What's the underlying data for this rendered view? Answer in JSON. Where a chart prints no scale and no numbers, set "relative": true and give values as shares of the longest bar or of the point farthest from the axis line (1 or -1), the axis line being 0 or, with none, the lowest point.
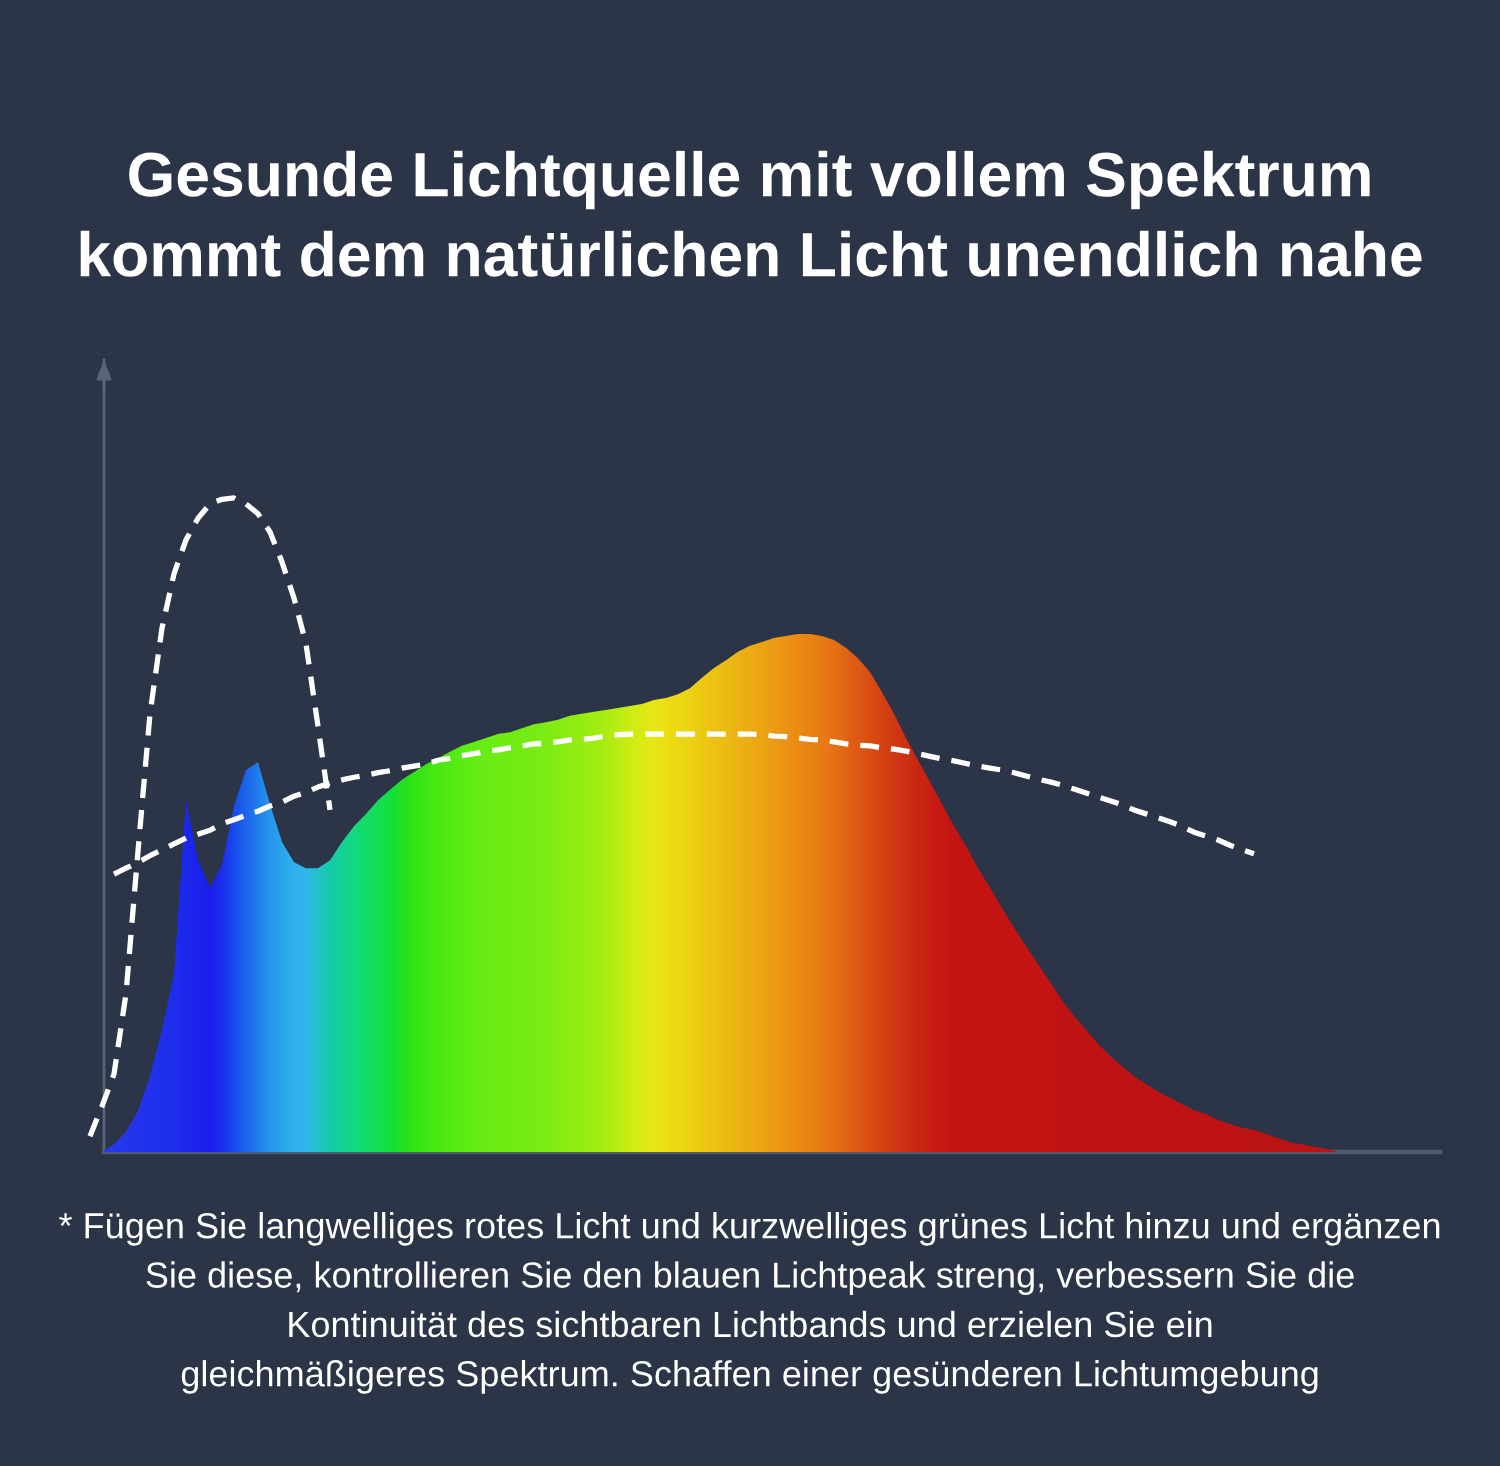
{
  "chart_data": {
    "type": "area",
    "relative": true,
    "title": "Gesunde Lichtquelle mit vollem Spektrum\nkommt dem natürlichen Licht unendlich nahe",
    "annotations": [
      "* Fügen Sie langwelliges rotes Licht und kurzwelliges grünes Licht hinzu und ergänzen\nSie diese, kontrollieren Sie den blauen Lichtpeak streng, verbessern Sie die\nKontinuität des sichtbaren Lichtbands und erzielen Sie ein\ngleichmäßigeres Spektrum. Schaffen einer gesünderen Lichtumgebung"
    ],
    "categories": [
      null,
      null,
      null,
      null,
      null,
      null,
      null,
      null,
      null,
      null,
      null,
      null,
      null,
      null,
      null,
      null,
      null,
      null,
      null,
      null,
      null,
      null,
      null,
      null,
      null,
      null,
      null,
      null,
      null,
      null,
      null,
      null,
      null,
      null,
      null,
      null,
      null,
      null,
      null,
      null,
      null,
      null,
      null,
      null,
      null,
      null,
      null,
      null,
      null,
      null,
      null,
      null,
      null,
      null,
      null,
      null,
      null,
      null,
      null,
      null,
      null,
      null,
      null,
      null,
      null,
      null,
      null,
      null,
      null,
      null,
      null,
      null,
      null,
      null,
      null,
      null,
      null,
      null,
      null,
      null,
      null,
      null,
      null,
      null,
      null,
      null,
      null,
      null,
      null,
      null,
      null,
      null,
      null,
      null,
      null,
      null,
      null,
      null,
      null,
      null,
      null,
      null,
      null,
      null,
      null,
      null,
      null,
      null,
      null,
      null,
      null,
      null,
      null
    ],
    "series": [
      {
        "values": [
          null,
          0,
          0.012,
          0.031,
          0.064,
          0.116,
          0.187,
          0.272,
          0.538,
          0.446,
          0.404,
          0.44,
          0.529,
          0.584,
          0.596,
          0.532,
          0.474,
          0.443,
          0.434,
          0.434,
          0.446,
          0.474,
          0.498,
          0.517,
          0.538,
          0.554,
          0.569,
          0.581,
          0.593,
          0.602,
          0.612,
          0.621,
          0.627,
          0.633,
          0.639,
          0.642,
          0.648,
          0.654,
          0.657,
          0.661,
          0.667,
          0.67,
          0.673,
          0.676,
          0.679,
          0.682,
          0.685,
          0.691,
          0.694,
          0.7,
          0.709,
          0.725,
          0.74,
          0.752,
          0.765,
          0.774,
          0.78,
          0.786,
          0.789,
          0.792,
          0.792,
          0.789,
          0.783,
          0.771,
          0.755,
          0.734,
          0.703,
          0.67,
          0.633,
          0.599,
          0.566,
          0.532,
          0.498,
          0.468,
          0.434,
          0.404,
          0.373,
          0.343,
          0.315,
          0.287,
          0.26,
          0.232,
          0.208,
          0.187,
          0.165,
          0.147,
          0.131,
          0.116,
          0.104,
          0.092,
          0.083,
          0.073,
          0.064,
          0.058,
          0.049,
          0.043,
          0.037,
          0.034,
          0.028,
          0.021,
          0.015,
          0.012,
          0.008,
          0.005,
          0,
          null,
          null,
          null,
          null,
          null,
          null,
          null,
          null
        ],
        "colors": [
          null,
          "#2a3cf0",
          "#2838f2",
          "#2636f2",
          "#2434f4",
          "#2232f4",
          "#2030f4",
          "#1e2ef4",
          "#1c28f2",
          "#1c24f0",
          "#1c1ef0",
          "#1c30f6",
          "#1a4cfa",
          "#1e66fc",
          "#2280fc",
          "#2896fa",
          "#2ca6f8",
          "#30b2f2",
          "#30b8ea",
          "#24c4c8",
          "#14cca8",
          "#0ad494",
          "#04da80",
          "#02de68",
          "#00e054",
          "#10e03e",
          "#24e224",
          "#34e412",
          "#40e606",
          "#4ae802",
          "#54ea00",
          "#5cec00",
          "#64ee00",
          "#6aee00",
          "#6ef000",
          "#70f000",
          "#74f000",
          "#78f000",
          "#7ef000",
          "#86f000",
          "#8ef000",
          "#96f000",
          "#a0f000",
          "#acf000",
          "#bcf000",
          "#ccee00",
          "#dcea00",
          "#e8e600",
          "#f0e000",
          "#f4da00",
          "#f6d200",
          "#f6ca00",
          "#f6c200",
          "#f6bc04",
          "#f6b406",
          "#f4ac08",
          "#f2a40a",
          "#f09c0c",
          "#ee940e",
          "#ec8c10",
          "#ea8410",
          "#e87c10",
          "#e67210",
          "#e26610",
          "#de5a10",
          "#da4e10",
          "#d64410",
          "#d23a10",
          "#ce3010",
          "#cc2810",
          "#ca2010",
          "#c81a10",
          "#c61610",
          "#c41410",
          "#c41410",
          "#c41410",
          "#c41410",
          "#c41410",
          "#c41410",
          "#c41410",
          "#c41410",
          "#c00e0e",
          "#c00e0e",
          "#c00e0e",
          "#c00e0e",
          "#c00e0e",
          "#c00e0e",
          "#c00e0e",
          "#c00e0e",
          "#c00e0e",
          "#c00e0e",
          "#c00e0e",
          "#c00e0e",
          "#c00e0e",
          "#c00e0e",
          "#c00e0e",
          "#bc1010",
          "#bc1010",
          "#bc1010",
          "#bc1010",
          "#bc1010",
          "#bc1010",
          "#bc1010",
          "#bc1010",
          "#bc1010",
          null,
          null,
          null,
          null,
          null,
          null,
          null,
          null
        ]
      },
      {
        "type": "line",
        "color": "#ffffff",
        "line_style": "dashed",
        "values": [
          0.024,
          0.07,
          0.119,
          0.242,
          0.46,
          0.67,
          0.801,
          0.884,
          0.936,
          0.969,
          0.991,
          0.998,
          1,
          0.991,
          0.976,
          0.948,
          0.902,
          0.847,
          0.777,
          0.651,
          0.523,
          null,
          null,
          null,
          null,
          null,
          null,
          null,
          null,
          null,
          null,
          null,
          null,
          null,
          null,
          null,
          null,
          null,
          null,
          null,
          null,
          null,
          null,
          null,
          null,
          null,
          null,
          null,
          null,
          null,
          null,
          null,
          null,
          null,
          null,
          null,
          null,
          null,
          null,
          null,
          null,
          null,
          null,
          null,
          null,
          null,
          null,
          null,
          null,
          null,
          null,
          null,
          null,
          null,
          null,
          null,
          null,
          null,
          null,
          null,
          null,
          null,
          null,
          null,
          null,
          null,
          null,
          null,
          null,
          null,
          null,
          null,
          null,
          null,
          null,
          null,
          null,
          null,
          null,
          null,
          null,
          null,
          null,
          null,
          null,
          null,
          null,
          null,
          null,
          null,
          null,
          null,
          null
        ]
      },
      {
        "type": "line",
        "color": "#ffffff",
        "line_style": "dashed",
        "values": [
          null,
          null,
          0.425,
          0.434,
          0.443,
          0.453,
          0.462,
          0.471,
          0.48,
          0.486,
          0.492,
          0.502,
          0.508,
          0.515,
          0.521,
          0.529,
          0.535,
          0.544,
          0.55,
          0.558,
          0.564,
          0.569,
          0.573,
          0.576,
          0.58,
          0.583,
          0.587,
          0.59,
          0.593,
          0.599,
          0.602,
          0.606,
          0.609,
          0.612,
          0.615,
          0.618,
          0.621,
          0.624,
          0.625,
          0.627,
          0.63,
          0.631,
          0.633,
          0.636,
          0.638,
          0.639,
          0.639,
          0.639,
          0.639,
          0.639,
          0.639,
          0.639,
          0.639,
          0.639,
          0.639,
          0.639,
          0.638,
          0.636,
          0.635,
          0.633,
          0.631,
          0.63,
          0.627,
          0.624,
          0.622,
          0.621,
          0.618,
          0.616,
          0.613,
          0.609,
          0.605,
          0.601,
          0.598,
          0.594,
          0.59,
          0.587,
          0.584,
          0.58,
          0.575,
          0.57,
          0.566,
          0.561,
          0.555,
          0.549,
          0.543,
          0.537,
          0.531,
          0.523,
          0.517,
          0.511,
          0.505,
          0.498,
          0.489,
          0.483,
          0.477,
          0.469,
          0.462,
          0.456,
          null,
          null,
          null,
          null,
          null,
          null,
          null,
          null,
          null,
          null,
          null,
          null,
          null,
          null,
          null
        ]
      }
    ]
  }
}
